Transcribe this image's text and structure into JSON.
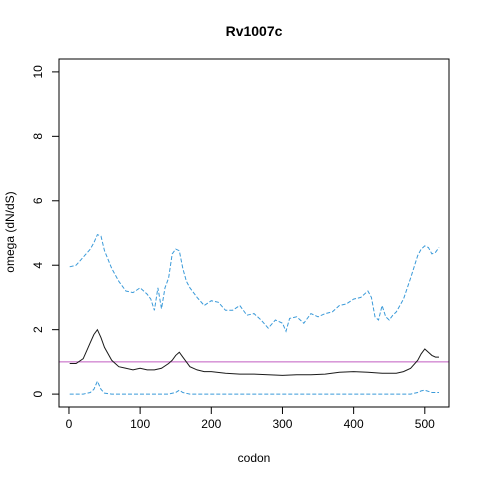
{
  "chart_data": {
    "type": "line",
    "title": "Rv1007c",
    "xlabel": "codon",
    "ylabel": "omega (dN/dS)",
    "xlim": [
      -14,
      534
    ],
    "ylim": [
      -0.4,
      10.4
    ],
    "xticks": [
      0,
      100,
      200,
      300,
      400,
      500
    ],
    "yticks": [
      0,
      2,
      4,
      6,
      8,
      10
    ],
    "grid": false,
    "reference_line": {
      "y": 1,
      "color": "#c05cc0"
    },
    "series": [
      {
        "style": "dashed",
        "color": "#3a9ad9",
        "x": [
          1,
          10,
          20,
          30,
          35,
          40,
          45,
          50,
          60,
          70,
          80,
          90,
          100,
          110,
          115,
          120,
          125,
          130,
          135,
          140,
          145,
          150,
          155,
          160,
          165,
          170,
          180,
          190,
          200,
          210,
          220,
          230,
          240,
          250,
          260,
          270,
          280,
          290,
          300,
          305,
          310,
          320,
          330,
          340,
          350,
          360,
          370,
          380,
          390,
          400,
          410,
          420,
          425,
          430,
          435,
          440,
          445,
          450,
          455,
          460,
          470,
          480,
          490,
          495,
          500,
          505,
          510,
          515,
          520
        ],
        "values": [
          3.95,
          4.0,
          4.25,
          4.5,
          4.7,
          4.95,
          4.9,
          4.45,
          3.9,
          3.5,
          3.2,
          3.15,
          3.3,
          3.1,
          2.95,
          2.6,
          3.3,
          2.65,
          3.3,
          3.6,
          4.35,
          4.5,
          4.45,
          3.9,
          3.5,
          3.3,
          3.0,
          2.75,
          2.9,
          2.85,
          2.6,
          2.6,
          2.75,
          2.45,
          2.5,
          2.3,
          2.05,
          2.3,
          2.2,
          1.95,
          2.35,
          2.4,
          2.2,
          2.5,
          2.4,
          2.5,
          2.55,
          2.75,
          2.8,
          2.95,
          3.0,
          3.2,
          3.0,
          2.4,
          2.3,
          2.75,
          2.4,
          2.3,
          2.45,
          2.55,
          2.95,
          3.6,
          4.3,
          4.5,
          4.6,
          4.55,
          4.35,
          4.4,
          4.55
        ]
      },
      {
        "style": "solid",
        "color": "#1a1a1a",
        "x": [
          1,
          10,
          20,
          25,
          30,
          35,
          40,
          45,
          50,
          60,
          70,
          80,
          90,
          100,
          110,
          120,
          130,
          140,
          145,
          150,
          155,
          160,
          165,
          170,
          180,
          190,
          200,
          220,
          240,
          260,
          280,
          300,
          320,
          340,
          360,
          380,
          400,
          420,
          440,
          460,
          470,
          480,
          490,
          495,
          500,
          505,
          510,
          515,
          520
        ],
        "values": [
          0.95,
          0.95,
          1.1,
          1.35,
          1.6,
          1.85,
          2.0,
          1.75,
          1.45,
          1.05,
          0.85,
          0.8,
          0.75,
          0.8,
          0.75,
          0.75,
          0.8,
          0.95,
          1.05,
          1.2,
          1.3,
          1.15,
          1.0,
          0.85,
          0.75,
          0.7,
          0.7,
          0.65,
          0.62,
          0.62,
          0.6,
          0.58,
          0.6,
          0.6,
          0.62,
          0.68,
          0.7,
          0.68,
          0.65,
          0.65,
          0.7,
          0.8,
          1.05,
          1.25,
          1.4,
          1.3,
          1.2,
          1.15,
          1.15
        ]
      },
      {
        "style": "dashed",
        "color": "#3a9ad9",
        "x": [
          1,
          20,
          30,
          35,
          40,
          45,
          50,
          60,
          100,
          140,
          150,
          155,
          160,
          170,
          200,
          300,
          400,
          480,
          490,
          495,
          500,
          510,
          520
        ],
        "values": [
          0.0,
          0.0,
          0.05,
          0.15,
          0.4,
          0.15,
          0.03,
          0.0,
          0.0,
          0.0,
          0.05,
          0.12,
          0.05,
          0.0,
          0.0,
          0.0,
          0.0,
          0.0,
          0.05,
          0.1,
          0.12,
          0.05,
          0.05
        ]
      }
    ]
  }
}
